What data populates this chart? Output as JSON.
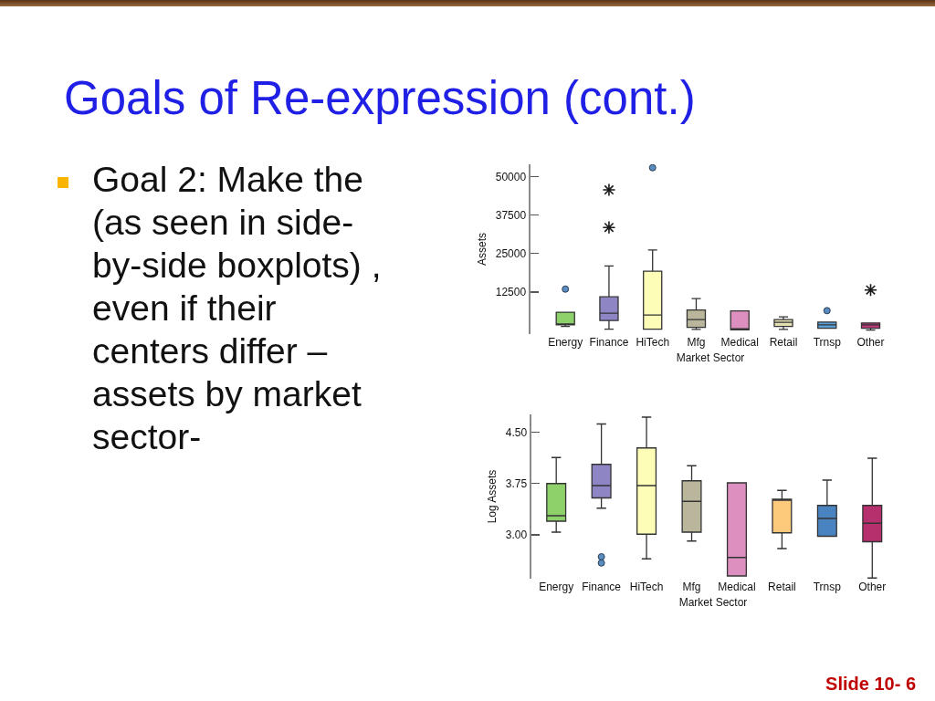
{
  "chart_data": [
    {
      "type": "box",
      "title": "Goals of Re-expression (cont.)",
      "annotations": [
        "Goal 2: Make the (as seen in side-by-side boxplots) , even if their centers differ –assets by market sector-"
      ],
      "xlabel": "Market Sector",
      "ylabel": "Assets",
      "categories": [
        "Energy",
        "Finance",
        "HiTech",
        "Mfg",
        "Medical",
        "Retail",
        "Trnsp",
        "Other"
      ],
      "ylim": [
        -1100,
        54000
      ],
      "yticks": [
        12500,
        25000,
        37500,
        50000
      ],
      "grid": false,
      "series": [
        {
          "type": "box",
          "colors": [
            "#8ed16b",
            "#8e86c4",
            "#fefdb8",
            "#b9b69c",
            "#dd90bf",
            "#e3dfb0",
            "#5a9fd6",
            "#b83a78"
          ],
          "boxes": [
            {
              "low": 1400,
              "q1": 1900,
              "median": 2100,
              "q3": 6000,
              "high": 6000
            },
            {
              "low": 500,
              "q1": 3300,
              "median": 5700,
              "q3": 11000,
              "high": 21000
            },
            {
              "low": 500,
              "q1": 500,
              "median": 5100,
              "q3": 19300,
              "high": 26200
            },
            {
              "low": 400,
              "q1": 1100,
              "median": 3600,
              "q3": 6700,
              "high": 10400
            },
            {
              "low": 300,
              "q1": 300,
              "median": 500,
              "q3": 6400,
              "high": 6400
            },
            {
              "low": 400,
              "q1": 1400,
              "median": 2700,
              "q3": 3600,
              "high": 4500
            },
            {
              "low": 800,
              "q1": 800,
              "median": 1900,
              "q3": 2800,
              "high": 2800
            },
            {
              "low": 200,
              "q1": 800,
              "median": 1900,
              "q3": 2500,
              "high": 2500
            }
          ]
        },
        {
          "type": "scatter",
          "marker": "circle",
          "color": "#5b8cc0",
          "x": [
            "Energy",
            "HiTech",
            "Trnsp"
          ],
          "values": [
            13500,
            52900,
            6500
          ]
        },
        {
          "type": "scatter",
          "marker": "cross",
          "color": "#1a1a1a",
          "x": [
            "Finance",
            "Finance",
            "Other"
          ],
          "values": [
            45700,
            33500,
            13200
          ]
        }
      ]
    },
    {
      "type": "box",
      "annotations": [
        "Slide 10- 6"
      ],
      "xlabel": "Market Sector",
      "ylabel": "Log Assets",
      "categories": [
        "Energy",
        "Finance",
        "HiTech",
        "Mfg",
        "Medical",
        "Retail",
        "Trnsp",
        "Other"
      ],
      "ylim": [
        2.36,
        4.76
      ],
      "yticks": [
        {
          "value": 3,
          "label": "3.00"
        },
        {
          "value": 3.75,
          "label": "3.75"
        },
        {
          "value": 4.5,
          "label": "4.50"
        }
      ],
      "grid": false,
      "series": [
        {
          "type": "box",
          "colors": [
            "#8ed16b",
            "#8e86c4",
            "#fefdb8",
            "#b9b69c",
            "#dd90bf",
            "#fdc97a",
            "#4a84c0",
            "#b5306c"
          ],
          "boxes": [
            {
              "low": 3.04,
              "q1": 3.2,
              "median": 3.28,
              "q3": 3.75,
              "high": 4.13
            },
            {
              "low": 3.39,
              "q1": 3.54,
              "median": 3.72,
              "q3": 4.03,
              "high": 4.62
            },
            {
              "low": 2.65,
              "q1": 3.01,
              "median": 3.72,
              "q3": 4.27,
              "high": 4.72
            },
            {
              "low": 2.91,
              "q1": 3.04,
              "median": 3.49,
              "q3": 3.79,
              "high": 4.01
            },
            {
              "low": 2.4,
              "q1": 2.4,
              "median": 2.67,
              "q3": 3.76,
              "high": 3.76
            },
            {
              "low": 2.8,
              "q1": 3.03,
              "median": 3.52,
              "q3": 3.52,
              "high": 3.65
            },
            {
              "low": 2.98,
              "q1": 2.98,
              "median": 3.24,
              "q3": 3.43,
              "high": 3.8
            },
            {
              "low": 2.37,
              "q1": 2.9,
              "median": 3.17,
              "q3": 3.43,
              "high": 4.12
            }
          ]
        },
        {
          "type": "scatter",
          "marker": "circle",
          "color": "#5b8cc0",
          "x": [
            "Finance",
            "Finance"
          ],
          "values": [
            2.68,
            2.59
          ]
        }
      ]
    }
  ]
}
